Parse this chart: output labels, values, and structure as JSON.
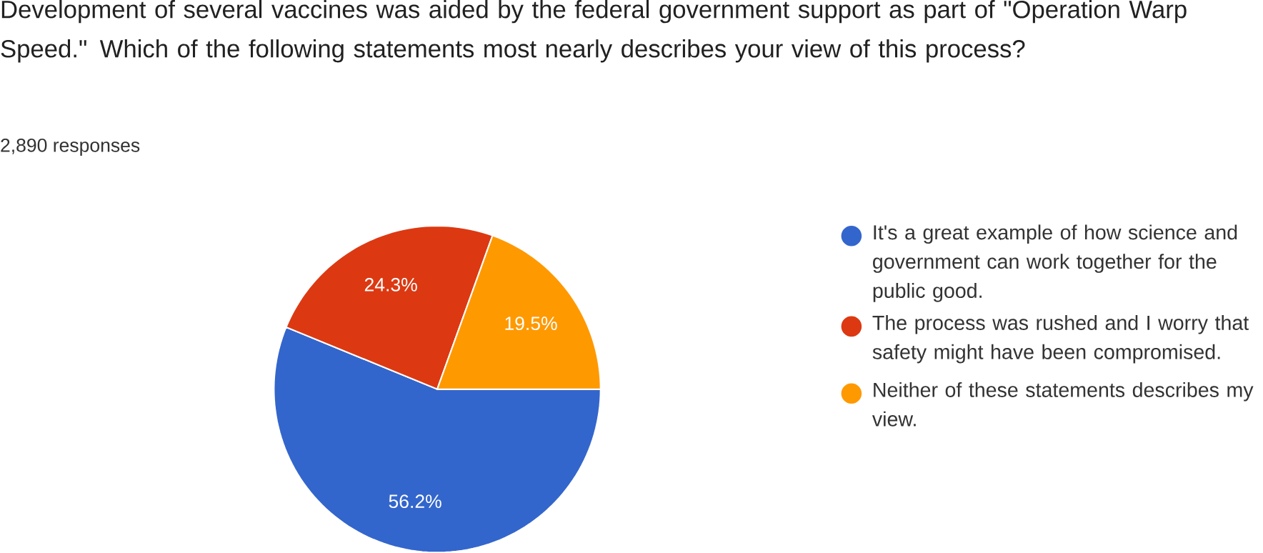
{
  "chart_data": {
    "type": "pie",
    "title": "Development of several vaccines was aided by the federal government support as part of \"Operation Warp Speed.\" Which of the following statements most nearly describes your view of this process?",
    "subtitle": "2,890 responses",
    "categories": [
      "It's a great example of how science and government can work together for the public good.",
      "The process was rushed and I worry that safety might have been compromised.",
      "Neither of these statements describes my view."
    ],
    "values": [
      56.2,
      24.3,
      19.5
    ],
    "colors": [
      "#3366cc",
      "#dc3912",
      "#ff9900"
    ],
    "value_labels": [
      "56.2%",
      "24.3%",
      "19.5%"
    ],
    "legend": "right"
  }
}
